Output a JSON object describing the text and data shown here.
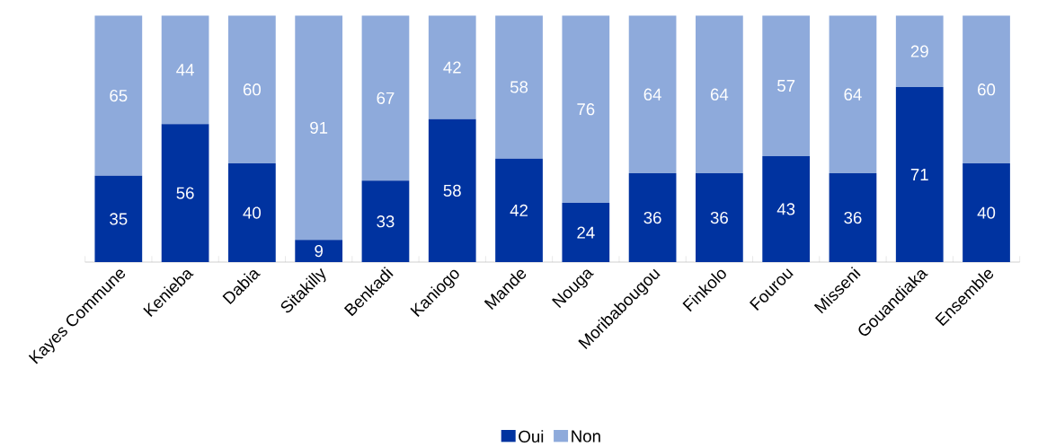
{
  "chart_data": {
    "type": "bar",
    "stacked": true,
    "data_labels": true,
    "legend": "bottom",
    "categories": [
      "Kayes Commune",
      "Kenieba",
      "Dabia",
      "Sitakilly",
      "Benkadi",
      "Kaniogo",
      "Mande",
      "Nouga",
      "Moribabougou",
      "Finkolo",
      "Fourou",
      "Misseni",
      "Gouandiaka",
      "Ensemble"
    ],
    "series": [
      {
        "name": "Oui",
        "color": "#0033a0",
        "values": [
          35,
          56,
          40,
          9,
          33,
          58,
          42,
          24,
          36,
          36,
          43,
          36,
          71,
          40
        ]
      },
      {
        "name": "Non",
        "color": "#8eaadb",
        "values": [
          65,
          44,
          60,
          91,
          67,
          42,
          58,
          76,
          64,
          64,
          57,
          64,
          29,
          60
        ]
      }
    ]
  }
}
